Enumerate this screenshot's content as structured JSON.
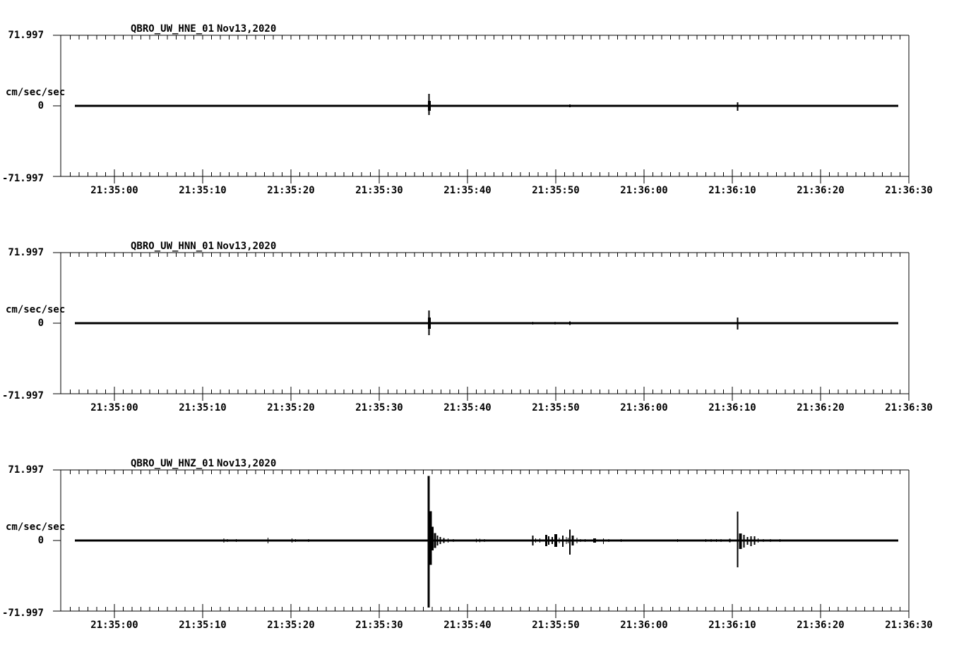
{
  "background_color": "#ffffff",
  "trace_color": "#000000",
  "chart_data": {
    "type": "line",
    "kind": "seismogram",
    "units": "cm/sec/sec",
    "ylim": [
      -71.997,
      71.997
    ],
    "ytick_labels": [
      "71.997",
      "0",
      "-71.997"
    ],
    "x_tick_labels": [
      "21:35:00",
      "21:35:10",
      "21:35:20",
      "21:35:30",
      "21:35:40",
      "21:35:50",
      "21:36:00",
      "21:36:10",
      "21:36:20",
      "21:36:30"
    ],
    "x_axis": {
      "t0_label": "21:35:00",
      "seconds_before_t0": 6,
      "seconds_after_t0": 90,
      "minor_tick_seconds": 1,
      "major_tick_seconds": 10
    },
    "grid": false,
    "legend": false,
    "panels": [
      {
        "station": "QBRO_UW_HNE_01",
        "date": "Nov13,2020",
        "spikes": [
          [
            35.64,
            12.2,
            9.4,
            2
          ],
          [
            35.68,
            5.0,
            5.0,
            4
          ],
          [
            47.4,
            1.2,
            1.2,
            1
          ],
          [
            47.9,
            0.8,
            0.8,
            1
          ],
          [
            50.5,
            1.1,
            1.1,
            1
          ],
          [
            51.6,
            1.6,
            1.6,
            2
          ],
          [
            70.6,
            3.6,
            5.0,
            2
          ],
          [
            71.2,
            0.9,
            0.9,
            1
          ]
        ]
      },
      {
        "station": "QBRO_UW_HNN_01",
        "date": "Nov13,2020",
        "spikes": [
          [
            35.64,
            13.0,
            12.2,
            2
          ],
          [
            35.68,
            5.8,
            5.8,
            4
          ],
          [
            47.4,
            1.4,
            1.4,
            1
          ],
          [
            49.0,
            0.8,
            0.8,
            1
          ],
          [
            49.9,
            1.4,
            1.4,
            1
          ],
          [
            50.6,
            0.8,
            0.8,
            1
          ],
          [
            51.6,
            1.8,
            1.8,
            2
          ],
          [
            70.6,
            5.8,
            6.5,
            2
          ],
          [
            71.3,
            1.0,
            1.0,
            1
          ],
          [
            71.9,
            0.8,
            0.8,
            1
          ]
        ]
      },
      {
        "station": "QBRO_UW_HNZ_01",
        "date": "Nov13,2020",
        "spikes": [
          [
            12.4,
            2.2,
            2.2,
            1
          ],
          [
            12.8,
            1.4,
            1.4,
            1
          ],
          [
            13.8,
            1.5,
            1.5,
            1
          ],
          [
            14.3,
            0.8,
            0.8,
            1
          ],
          [
            17.4,
            2.9,
            2.9,
            1
          ],
          [
            20.1,
            2.2,
            2.2,
            1
          ],
          [
            20.5,
            1.4,
            1.4,
            1
          ],
          [
            22.0,
            1.4,
            1.4,
            1
          ],
          [
            24.2,
            0.7,
            0.7,
            1
          ],
          [
            35.6,
            66.0,
            68.5,
            3
          ],
          [
            35.8,
            30.0,
            25.0,
            4
          ],
          [
            36.0,
            14.0,
            10.0,
            4
          ],
          [
            36.3,
            7.5,
            7.5,
            3
          ],
          [
            36.6,
            5.0,
            5.0,
            2
          ],
          [
            36.9,
            3.5,
            3.5,
            2
          ],
          [
            37.3,
            2.5,
            2.5,
            2
          ],
          [
            37.8,
            2.0,
            2.0,
            1
          ],
          [
            38.4,
            1.5,
            1.5,
            1
          ],
          [
            39.2,
            1.2,
            1.2,
            1
          ],
          [
            40.2,
            1.0,
            1.0,
            1
          ],
          [
            41.0,
            1.7,
            1.7,
            1
          ],
          [
            41.4,
            1.9,
            1.9,
            1
          ],
          [
            41.9,
            1.5,
            1.5,
            1
          ],
          [
            43.0,
            0.8,
            0.8,
            1
          ],
          [
            45.2,
            0.8,
            0.8,
            1
          ],
          [
            46.4,
            0.9,
            0.9,
            1
          ],
          [
            47.4,
            5.0,
            5.0,
            2
          ],
          [
            47.7,
            2.2,
            2.2,
            1
          ],
          [
            48.2,
            2.2,
            2.2,
            1
          ],
          [
            48.9,
            5.8,
            5.8,
            3
          ],
          [
            49.2,
            4.3,
            4.3,
            2
          ],
          [
            49.6,
            3.6,
            3.6,
            2
          ],
          [
            50.0,
            6.5,
            6.5,
            4
          ],
          [
            50.4,
            2.9,
            2.9,
            1
          ],
          [
            50.8,
            5.0,
            6.5,
            2
          ],
          [
            51.2,
            3.6,
            3.6,
            1
          ],
          [
            51.4,
            2.9,
            2.9,
            1
          ],
          [
            51.6,
            11.0,
            14.4,
            2
          ],
          [
            51.9,
            5.0,
            5.0,
            3
          ],
          [
            52.4,
            2.9,
            2.9,
            1
          ],
          [
            52.8,
            1.4,
            1.4,
            1
          ],
          [
            53.3,
            1.4,
            1.4,
            1
          ],
          [
            54.4,
            2.2,
            2.2,
            4
          ],
          [
            55.4,
            2.2,
            3.6,
            1
          ],
          [
            56.0,
            1.4,
            1.4,
            1
          ],
          [
            57.4,
            1.4,
            1.4,
            1
          ],
          [
            58.6,
            0.9,
            0.9,
            1
          ],
          [
            59.8,
            0.9,
            0.9,
            1
          ],
          [
            62.2,
            1.1,
            1.1,
            1
          ],
          [
            63.8,
            1.4,
            1.4,
            1
          ],
          [
            66.2,
            0.9,
            0.9,
            1
          ],
          [
            67.0,
            1.4,
            1.4,
            1
          ],
          [
            67.6,
            1.4,
            1.4,
            1
          ],
          [
            68.2,
            1.4,
            1.4,
            1
          ],
          [
            68.7,
            1.4,
            1.4,
            1
          ],
          [
            69.2,
            1.1,
            1.1,
            1
          ],
          [
            69.7,
            1.8,
            1.8,
            2
          ],
          [
            70.6,
            29.5,
            27.4,
            2
          ],
          [
            70.9,
            7.2,
            8.6,
            4
          ],
          [
            71.3,
            5.8,
            7.2,
            2
          ],
          [
            71.7,
            3.6,
            4.3,
            2
          ],
          [
            72.1,
            4.3,
            5.8,
            2
          ],
          [
            72.5,
            4.3,
            4.3,
            2
          ],
          [
            72.9,
            2.2,
            2.2,
            1
          ],
          [
            73.5,
            1.4,
            1.4,
            1
          ],
          [
            74.3,
            1.4,
            1.4,
            1
          ],
          [
            75.4,
            1.4,
            1.4,
            1
          ],
          [
            77.0,
            0.9,
            0.9,
            1
          ],
          [
            79.0,
            0.7,
            0.7,
            1
          ]
        ]
      }
    ]
  }
}
